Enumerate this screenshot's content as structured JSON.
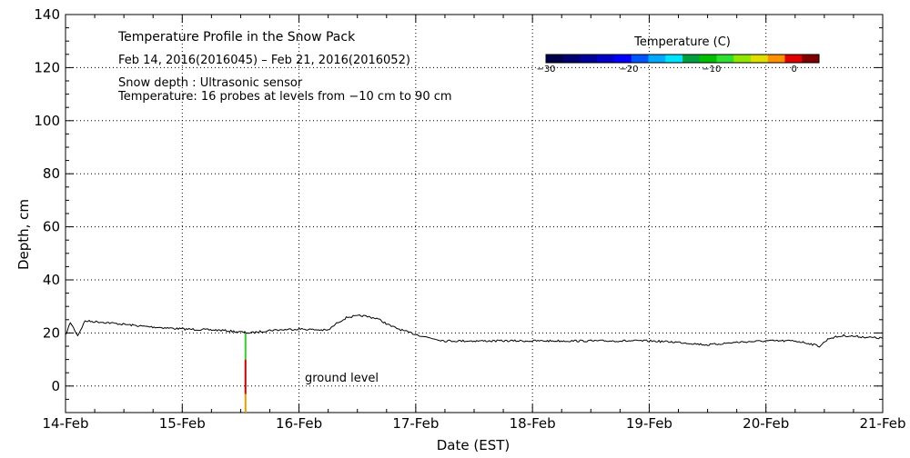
{
  "chart_data": {
    "type": "line",
    "title": "Temperature Profile in the Snow Pack",
    "subtitle": "Feb 14, 2016(2016045) – Feb 21, 2016(2016052)",
    "notes": [
      "Snow depth : Ultrasonic sensor",
      "Temperature: 16 probes at levels from −10 cm to 90 cm"
    ],
    "xlabel": "Date (EST)",
    "ylabel": "Depth, cm",
    "x_ticks": [
      "14-Feb",
      "15-Feb",
      "16-Feb",
      "17-Feb",
      "18-Feb",
      "19-Feb",
      "20-Feb",
      "21-Feb"
    ],
    "y_ticks": [
      "0",
      "20",
      "40",
      "60",
      "80",
      "100",
      "120",
      "140"
    ],
    "xlim": [
      "2016-02-14",
      "2016-02-21"
    ],
    "ylim": [
      -10,
      140
    ],
    "grid": true,
    "annotation": "ground level",
    "colorbar": {
      "title": "Temperature (C)",
      "ticks": [
        "−30",
        "−20",
        "−10",
        "0"
      ],
      "range": [
        -30,
        3
      ],
      "colors": [
        "#00004a",
        "#000070",
        "#00009a",
        "#0000c8",
        "#0000ff",
        "#0055ff",
        "#00aaff",
        "#00e5ff",
        "#00a040",
        "#00c000",
        "#30e030",
        "#90e800",
        "#e0e000",
        "#ff9000",
        "#e00000",
        "#800000"
      ]
    },
    "series": [
      {
        "values": [
          {
            "x": "2016-02-14 00:00",
            "y": 19
          },
          {
            "x": "2016-02-14 01:00",
            "y": 24
          },
          {
            "x": "2016-02-14 02:30",
            "y": 19
          },
          {
            "x": "2016-02-14 04:00",
            "y": 24.5
          },
          {
            "x": "2016-02-14 08:00",
            "y": 24
          },
          {
            "x": "2016-02-14 16:00",
            "y": 22.5
          },
          {
            "x": "2016-02-15 00:00",
            "y": 21.5
          },
          {
            "x": "2016-02-15 08:00",
            "y": 21
          },
          {
            "x": "2016-02-15 14:00",
            "y": 20
          },
          {
            "x": "2016-02-15 18:00",
            "y": 21
          },
          {
            "x": "2016-02-16 00:00",
            "y": 21.5
          },
          {
            "x": "2016-02-16 06:00",
            "y": 21
          },
          {
            "x": "2016-02-16 08:00",
            "y": 24
          },
          {
            "x": "2016-02-16 10:00",
            "y": 26
          },
          {
            "x": "2016-02-16 13:00",
            "y": 26.5
          },
          {
            "x": "2016-02-16 16:00",
            "y": 25.5
          },
          {
            "x": "2016-02-16 19:00",
            "y": 22.5
          },
          {
            "x": "2016-02-16 22:00",
            "y": 20.5
          },
          {
            "x": "2016-02-17 02:00",
            "y": 18.5
          },
          {
            "x": "2016-02-17 06:00",
            "y": 17
          },
          {
            "x": "2016-02-17 12:00",
            "y": 17
          },
          {
            "x": "2016-02-18 00:00",
            "y": 17
          },
          {
            "x": "2016-02-18 12:00",
            "y": 17
          },
          {
            "x": "2016-02-19 00:00",
            "y": 17
          },
          {
            "x": "2016-02-19 06:00",
            "y": 16.5
          },
          {
            "x": "2016-02-19 12:00",
            "y": 15.5
          },
          {
            "x": "2016-02-19 18:00",
            "y": 16.5
          },
          {
            "x": "2016-02-20 00:00",
            "y": 17
          },
          {
            "x": "2016-02-20 06:00",
            "y": 17
          },
          {
            "x": "2016-02-20 09:00",
            "y": 16
          },
          {
            "x": "2016-02-20 11:00",
            "y": 15
          },
          {
            "x": "2016-02-20 13:00",
            "y": 18
          },
          {
            "x": "2016-02-20 16:00",
            "y": 19
          },
          {
            "x": "2016-02-21 00:00",
            "y": 18
          }
        ]
      }
    ],
    "probe_column": {
      "x": "2016-02-15 13:00",
      "segments": [
        {
          "from": -10,
          "to": -3,
          "color": "#e0a000"
        },
        {
          "from": -3,
          "to": 10,
          "color": "#d00000"
        },
        {
          "from": 10,
          "to": 20,
          "color": "#30d030"
        }
      ]
    }
  }
}
